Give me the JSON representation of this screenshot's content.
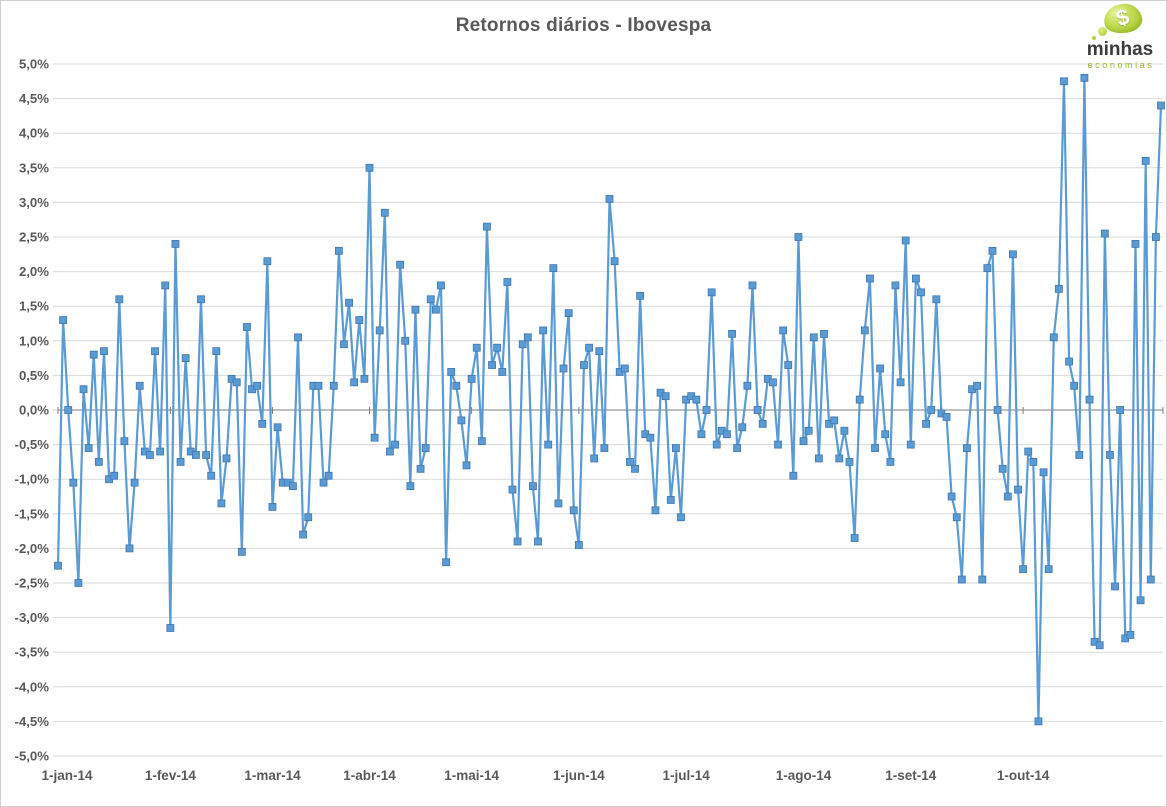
{
  "header": {
    "title": "Retornos diários - Ibovespa"
  },
  "logo": {
    "line1": "minhas",
    "line2": "economias",
    "dollar_glyph": "$",
    "blob_color": "#a3ca28",
    "text_color": "#3b3b3b",
    "accent_text_color": "#8fb922"
  },
  "chart_data": {
    "type": "line",
    "title": "Retornos diários - Ibovespa",
    "xlabel": "",
    "ylabel": "",
    "ylim": [
      -5.0,
      5.0
    ],
    "y_step": 0.5,
    "grid": true,
    "legend_position": "none",
    "decimal_separator": ",",
    "y_tick_labels": [
      "5,0%",
      "4,5%",
      "4,0%",
      "3,5%",
      "3,0%",
      "2,5%",
      "2,0%",
      "1,5%",
      "1,0%",
      "0,5%",
      "0,0%",
      "-0,5%",
      "-1,0%",
      "-1,5%",
      "-2,0%",
      "-2,5%",
      "-3,0%",
      "-3,5%",
      "-4,0%",
      "-4,5%",
      "-5,0%"
    ],
    "x_tick_labels": [
      "1-jan-14",
      "1-fev-14",
      "1-mar-14",
      "1-abr-14",
      "1-mai-14",
      "1-jun-14",
      "1-jul-14",
      "1-ago-14",
      "1-set-14",
      "1-out-14"
    ],
    "x_tick_indices": [
      0,
      22,
      42,
      61,
      81,
      102,
      123,
      146,
      167,
      189
    ],
    "line_color": "#5B9BD5",
    "marker": "square",
    "marker_color": "#5B9BD5",
    "marker_edge_color": "#3f76ad",
    "grid_color": "#d9d9d9",
    "zero_axis_color": "#7f7f7f",
    "label_color": "#595959",
    "values": [
      -2.25,
      1.3,
      0.0,
      -1.05,
      -2.5,
      0.3,
      -0.55,
      0.8,
      -0.75,
      0.85,
      -1.0,
      -0.95,
      1.6,
      -0.45,
      -2.0,
      -1.05,
      0.35,
      -0.6,
      -0.65,
      0.85,
      -0.6,
      1.8,
      -3.15,
      2.4,
      -0.75,
      0.75,
      -0.6,
      -0.65,
      1.6,
      -0.65,
      -0.95,
      0.85,
      -1.35,
      -0.7,
      0.45,
      0.4,
      -2.05,
      1.2,
      0.3,
      0.35,
      -0.2,
      2.15,
      -1.4,
      -0.25,
      -1.05,
      -1.05,
      -1.1,
      1.05,
      -1.8,
      -1.55,
      0.35,
      0.35,
      -1.05,
      -0.95,
      0.35,
      2.3,
      0.95,
      1.55,
      0.4,
      1.3,
      0.45,
      3.5,
      -0.4,
      1.15,
      2.85,
      -0.6,
      -0.5,
      2.1,
      1.0,
      -1.1,
      1.45,
      -0.85,
      -0.55,
      1.6,
      1.45,
      1.8,
      -2.2,
      0.55,
      0.35,
      -0.15,
      -0.8,
      0.45,
      0.9,
      -0.45,
      2.65,
      0.65,
      0.9,
      0.55,
      1.85,
      -1.15,
      -1.9,
      0.95,
      1.05,
      -1.1,
      -1.9,
      1.15,
      -0.5,
      2.05,
      -1.35,
      0.6,
      1.4,
      -1.45,
      -1.95,
      0.65,
      0.9,
      -0.7,
      0.85,
      -0.55,
      3.05,
      2.15,
      0.55,
      0.6,
      -0.75,
      -0.85,
      1.65,
      -0.35,
      -0.4,
      -1.45,
      0.25,
      0.2,
      -1.3,
      -0.55,
      -1.55,
      0.15,
      0.2,
      0.15,
      -0.35,
      0.0,
      1.7,
      -0.5,
      -0.3,
      -0.35,
      1.1,
      -0.55,
      -0.25,
      0.35,
      1.8,
      0.0,
      -0.2,
      0.45,
      0.4,
      -0.5,
      1.15,
      0.65,
      -0.95,
      2.5,
      -0.45,
      -0.3,
      1.05,
      -0.7,
      1.1,
      -0.2,
      -0.15,
      -0.7,
      -0.3,
      -0.75,
      -1.85,
      0.15,
      1.15,
      1.9,
      -0.55,
      0.6,
      -0.35,
      -0.75,
      1.8,
      0.4,
      2.45,
      -0.5,
      1.9,
      1.7,
      -0.2,
      0.0,
      1.6,
      -0.05,
      -0.1,
      -1.25,
      -1.55,
      -2.45,
      -0.55,
      0.3,
      0.35,
      -2.45,
      2.05,
      2.3,
      0.0,
      -0.85,
      -1.25,
      2.25,
      -1.15,
      -2.3,
      -0.6,
      -0.75,
      -4.5,
      -0.9,
      -2.3,
      1.05,
      1.75,
      4.75,
      0.7,
      0.35,
      -0.65,
      4.8,
      0.15,
      -3.35,
      -3.4,
      2.55,
      -0.65,
      -2.55,
      0.0,
      -3.3,
      -3.25,
      2.4,
      -2.75,
      3.6,
      -2.45,
      2.5,
      4.4
    ]
  }
}
